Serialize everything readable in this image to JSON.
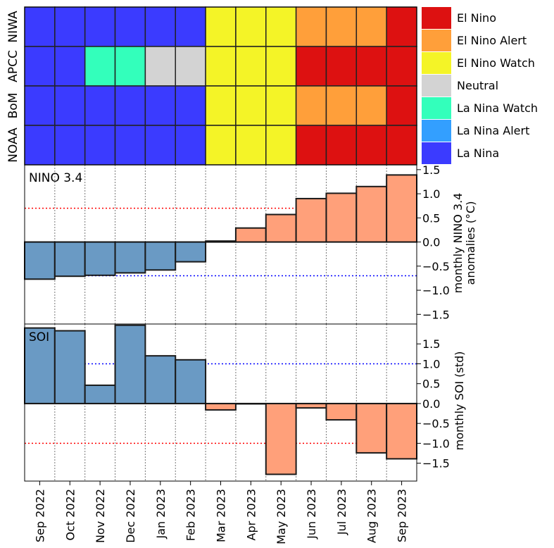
{
  "chart_data": [
    {
      "type": "heatmap",
      "rows": [
        "NIWA",
        "APCC",
        "BoM",
        "NOAA"
      ],
      "months": [
        "Sep 2022",
        "Oct 2022",
        "Nov 2022",
        "Dec 2022",
        "Jan 2023",
        "Feb 2023",
        "Mar 2023",
        "Apr 2023",
        "May 2023",
        "Jun 2023",
        "Jul 2023",
        "Aug 2023",
        "Sep 2023"
      ],
      "status_matrix": [
        [
          "La Nina",
          "La Nina",
          "La Nina",
          "La Nina",
          "La Nina",
          "La Nina",
          "El Nino Watch",
          "El Nino Watch",
          "El Nino Watch",
          "El Nino Alert",
          "El Nino Alert",
          "El Nino Alert",
          "El Nino"
        ],
        [
          "La Nina",
          "La Nina",
          "La Nina Watch",
          "La Nina Watch",
          "Neutral",
          "Neutral",
          "El Nino Watch",
          "El Nino Watch",
          "El Nino Watch",
          "El Nino",
          "El Nino",
          "El Nino",
          "El Nino"
        ],
        [
          "La Nina",
          "La Nina",
          "La Nina",
          "La Nina",
          "La Nina",
          "La Nina",
          "El Nino Watch",
          "El Nino Watch",
          "El Nino Watch",
          "El Nino Alert",
          "El Nino Alert",
          "El Nino Alert",
          "El Nino"
        ],
        [
          "La Nina",
          "La Nina",
          "La Nina",
          "La Nina",
          "La Nina",
          "La Nina",
          "El Nino Watch",
          "El Nino Watch",
          "El Nino Watch",
          "El Nino",
          "El Nino",
          "El Nino",
          "El Nino"
        ]
      ],
      "legend": [
        {
          "label": "El Nino",
          "color": "#dd1111"
        },
        {
          "label": "El Nino Alert",
          "color": "#ff9f3a"
        },
        {
          "label": "El Nino Watch",
          "color": "#f4f427"
        },
        {
          "label": "Neutral",
          "color": "#d3d3d3"
        },
        {
          "label": "La Nina Watch",
          "color": "#33ffbb"
        },
        {
          "label": "La Nina Alert",
          "color": "#339fff"
        },
        {
          "label": "La Nina",
          "color": "#3b3bff"
        }
      ]
    },
    {
      "type": "bar",
      "panel_label": "NINO 3.4",
      "ylabel": "monthly NINO 3.4\nanomalies (°C)",
      "ylim": [
        -1.7,
        1.6
      ],
      "yticks": [
        1.5,
        1.0,
        0.5,
        0.0,
        -0.5,
        -1.0,
        -1.5
      ],
      "ytick_labels": [
        "1.5",
        "1.0",
        "0.5",
        "0.0",
        "−0.5",
        "−1.0",
        "−1.5"
      ],
      "categories": [
        "Sep 2022",
        "Oct 2022",
        "Nov 2022",
        "Dec 2022",
        "Jan 2023",
        "Feb 2023",
        "Mar 2023",
        "Apr 2023",
        "May 2023",
        "Jun 2023",
        "Jul 2023",
        "Aug 2023",
        "Sep 2023"
      ],
      "values": [
        -0.77,
        -0.71,
        -0.69,
        -0.64,
        -0.58,
        -0.41,
        0.02,
        0.29,
        0.57,
        0.9,
        1.01,
        1.15,
        1.39
      ],
      "thresholds": [
        {
          "value": 0.7,
          "color": "#ff0000"
        },
        {
          "value": -0.7,
          "color": "#0000ff"
        }
      ],
      "positive_color": "#ffa07a",
      "negative_color": "#6a9ac4"
    },
    {
      "type": "bar",
      "panel_label": "SOI",
      "ylabel": "monthly SOI (std)",
      "ylim": [
        -1.95,
        2.0
      ],
      "yticks": [
        1.5,
        1.0,
        0.5,
        0.0,
        -0.5,
        -1.0,
        -1.5
      ],
      "ytick_labels": [
        "1.5",
        "1.0",
        "0.5",
        "0.0",
        "−0.5",
        "−1.0",
        "−1.5"
      ],
      "categories": [
        "Sep 2022",
        "Oct 2022",
        "Nov 2022",
        "Dec 2022",
        "Jan 2023",
        "Feb 2023",
        "Mar 2023",
        "Apr 2023",
        "May 2023",
        "Jun 2023",
        "Jul 2023",
        "Aug 2023",
        "Sep 2023"
      ],
      "values": [
        1.9,
        1.83,
        0.46,
        1.97,
        1.2,
        1.1,
        -0.16,
        0.0,
        -1.78,
        -0.11,
        -0.41,
        -1.24,
        -1.39
      ],
      "thresholds": [
        {
          "value": 1.0,
          "color": "#0000ff"
        },
        {
          "value": -1.0,
          "color": "#ff0000"
        }
      ],
      "positive_color": "#6a9ac4",
      "negative_color": "#ffa07a"
    }
  ]
}
